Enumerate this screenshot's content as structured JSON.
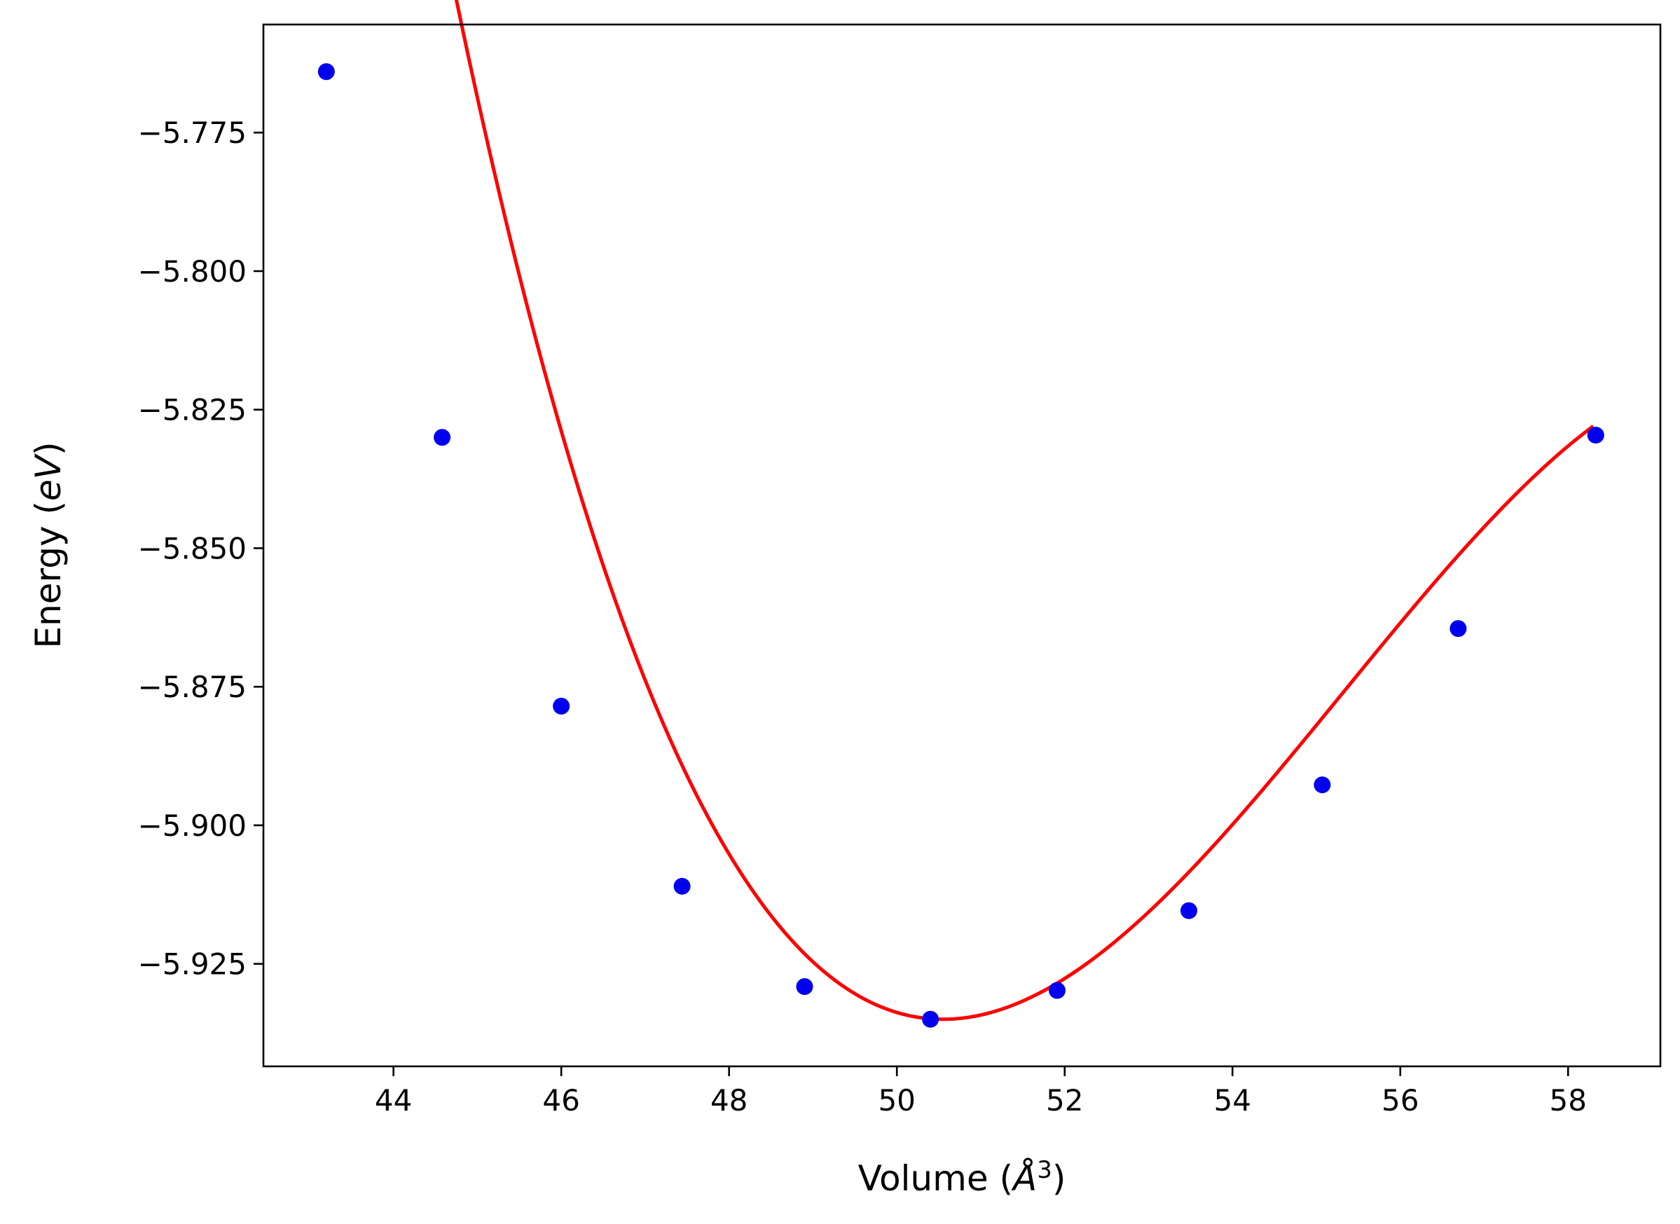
{
  "chart_data": {
    "type": "line",
    "title": "",
    "xlabel_parts": [
      "Volume (",
      "Å",
      "3",
      ")"
    ],
    "ylabel_parts": [
      "Energy (",
      "eV",
      ")"
    ],
    "xlim": [
      42.45,
      59.1
    ],
    "ylim": [
      -5.9435,
      -5.7555
    ],
    "xticks": [
      44,
      46,
      48,
      50,
      52,
      54,
      56,
      58
    ],
    "xtick_labels": [
      "44",
      "46",
      "48",
      "50",
      "52",
      "54",
      "56",
      "58"
    ],
    "yticks": [
      -5.775,
      -5.8,
      -5.825,
      -5.85,
      -5.875,
      -5.9,
      -5.925
    ],
    "ytick_labels": [
      "−5.775",
      "−5.800",
      "−5.825",
      "−5.850",
      "−5.875",
      "−5.900",
      "−5.925"
    ],
    "grid": false,
    "legend": "none",
    "series": [
      {
        "kind": "fit-curve",
        "color": "#ff0000",
        "fit": {
          "V0": 50.55,
          "a": 0.00389,
          "b": -0.000272
        },
        "x_range": [
          43.2,
          58.3
        ]
      },
      {
        "kind": "points",
        "color": "#0000ee",
        "x": [
          43.2,
          44.58,
          46.0,
          47.44,
          48.9,
          50.4,
          51.91,
          53.48,
          55.07,
          56.69,
          58.33
        ],
        "y": [
          -5.764,
          -5.83,
          -5.8785,
          -5.911,
          -5.9291,
          -5.935,
          -5.9298,
          -5.9154,
          -5.8927,
          -5.8645,
          -5.8296
        ]
      }
    ]
  }
}
